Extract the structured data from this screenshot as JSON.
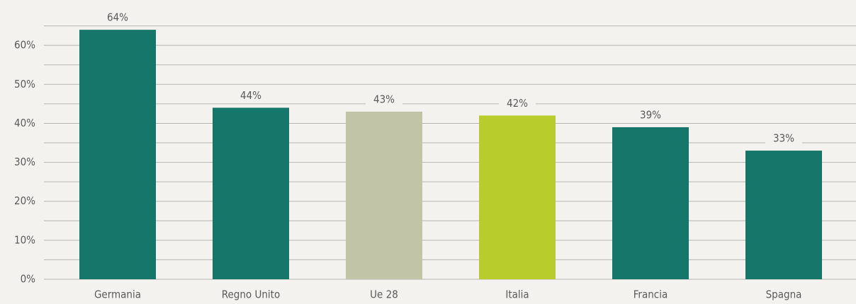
{
  "chart_data": {
    "type": "bar",
    "categories": [
      "Germania",
      "Regno Unito",
      "Ue 28",
      "Italia",
      "Francia",
      "Spagna"
    ],
    "values": [
      64,
      44,
      43,
      42,
      39,
      33
    ],
    "value_labels": [
      "64%",
      "44%",
      "43%",
      "42%",
      "39%",
      "33%"
    ],
    "colors": [
      "#17766a",
      "#17766a",
      "#c1c4a7",
      "#b8cd2c",
      "#17766a",
      "#17766a"
    ],
    "ylim": [
      0,
      65
    ],
    "yticks": [
      {
        "value": 0,
        "label": "0%"
      },
      {
        "value": 10,
        "label": "10%"
      },
      {
        "value": 20,
        "label": "20%"
      },
      {
        "value": 30,
        "label": "30%"
      },
      {
        "value": 40,
        "label": "40%"
      },
      {
        "value": 50,
        "label": "50%"
      },
      {
        "value": 60,
        "label": "60%"
      }
    ],
    "minor_yticks": [
      5,
      15,
      25,
      35,
      45,
      55,
      65
    ],
    "grid": true
  }
}
